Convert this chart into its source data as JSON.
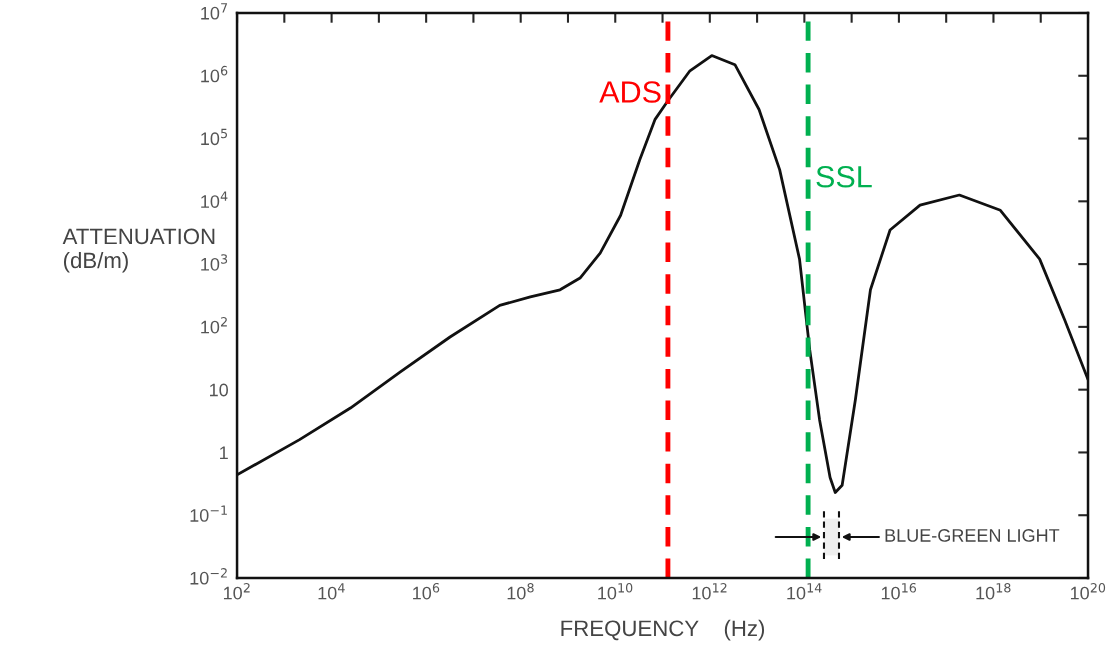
{
  "chart_data": {
    "type": "line",
    "xlabel": "FREQUENCY    (Hz)",
    "ylabel": "ATTENUATION\n(dB/m)",
    "log": "xy",
    "grid": false,
    "legend": false,
    "marker": "none",
    "line_style": "solid",
    "xlim": [
      100.0,
      1e+20
    ],
    "ylim": [
      0.01,
      10000000.0
    ],
    "xticks": [
      {
        "value": 100.0,
        "label": "10$^{2}$"
      },
      {
        "value": 1000.0,
        "label": null
      },
      {
        "value": 10000.0,
        "label": "10$^{4}$"
      },
      {
        "value": 100000.0,
        "label": null
      },
      {
        "value": 1000000.0,
        "label": "10$^{6}$"
      },
      {
        "value": 10000000.0,
        "label": null
      },
      {
        "value": 100000000.0,
        "label": "10$^{8}$"
      },
      {
        "value": 1000000000.0,
        "label": null
      },
      {
        "value": 10000000000.0,
        "label": "10$^{10}$"
      },
      {
        "value": 100000000000.0,
        "label": null
      },
      {
        "value": 1000000000000.0,
        "label": "10$^{12}$"
      },
      {
        "value": 10000000000000.0,
        "label": null
      },
      {
        "value": 100000000000000.0,
        "label": "10$^{14}$"
      },
      {
        "value": 1000000000000000.0,
        "label": null
      },
      {
        "value": 1e+16,
        "label": "10$^{16}$"
      },
      {
        "value": 1e+17,
        "label": null
      },
      {
        "value": 1e+18,
        "label": "10$^{18}$"
      },
      {
        "value": 1e+19,
        "label": null
      },
      {
        "value": 1e+20,
        "label": "10$^{20}$"
      }
    ],
    "yticks": [
      {
        "value": 0.01,
        "label": "10$^{−2}$"
      },
      {
        "value": 0.1,
        "label": "10$^{−1}$"
      },
      1,
      10,
      {
        "value": 100.0,
        "label": "10$^{2}$"
      },
      {
        "value": 1000.0,
        "label": "10$^{3}$"
      },
      {
        "value": 10000.0,
        "label": "10$^{4}$"
      },
      {
        "value": 100000.0,
        "label": "10$^{5}$"
      },
      {
        "value": 1000000.0,
        "label": "10$^{6}$"
      },
      {
        "value": 10000000.0,
        "label": "10$^{7}$"
      }
    ],
    "series": [
      {
        "color": "#111111",
        "x": [
          100.0,
          2100.0,
          25000.0,
          280000.0,
          3200000.0,
          36000000.0,
          160000000.0,
          680000000.0,
          1800000000.0,
          4800000000.0,
          13000000000.0,
          33000000000.0,
          69000000000.0,
          130000000000.0,
          380000000000.0,
          1100000000000.0,
          3400000000000.0,
          11000000000000.0,
          30000000000000.0,
          79000000000000.0,
          130000000000000.0,
          210000000000000.0,
          350000000000000.0,
          450000000000000.0,
          630000000000000.0,
          1200000000000000.0,
          2500000000000000.0,
          6500000000000000.0,
          2.8e+16,
          1.9e+17,
          1.4e+18,
          9.5e+18,
          3.2e+19,
          1e+20
        ],
        "values": [
          0.44,
          1.6,
          5.1,
          19,
          69,
          220,
          300,
          390,
          600,
          1500,
          6000,
          46000.0,
          200000.0,
          400000.0,
          1200000.0,
          2100000.0,
          1500000.0,
          290000.0,
          32000.0,
          1200,
          43,
          3.3,
          0.4,
          0.23,
          0.3,
          6.9,
          390,
          3500,
          8700,
          12600.0,
          7200,
          1200,
          130,
          14.5
        ]
      }
    ],
    "ref_lines": [
      {
        "axis": "x",
        "value": 130000000000.0,
        "label": "ADS",
        "color": "#ff0000",
        "line_style": "dashed"
      },
      {
        "axis": "x",
        "value": 120000000000000.0,
        "label": "SSL",
        "color": "#00b050",
        "line_style": "dashed"
      }
    ],
    "bands": [
      {
        "axis": "x",
        "from": 260000000000000.0,
        "to": 540000000000000.0,
        "label": "BLUE-GREEN LIGHT",
        "color": "#f0f0f0"
      }
    ]
  }
}
